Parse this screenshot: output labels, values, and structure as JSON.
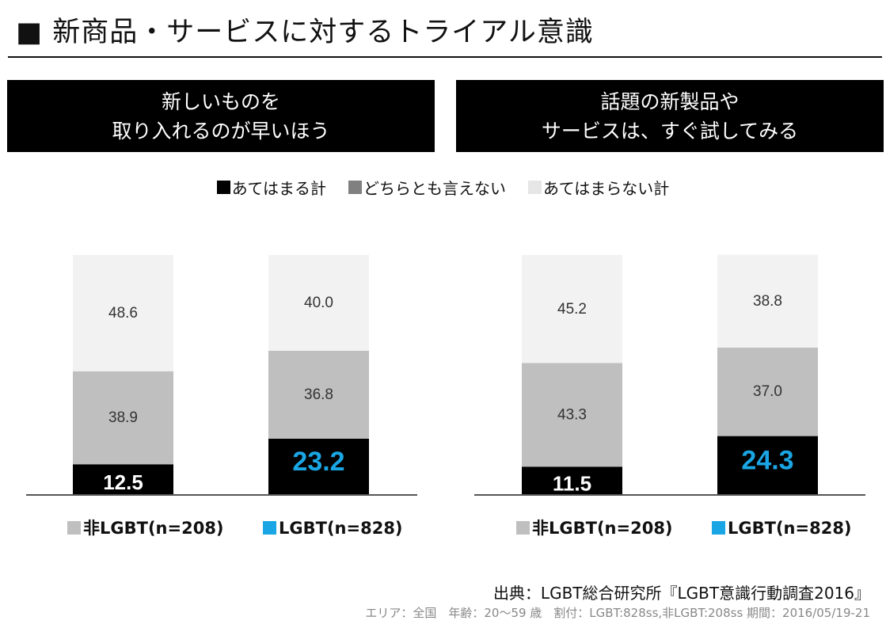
{
  "title": "■ 新商品・サービスに対するトライアル意識",
  "legend": [
    {
      "label": "あてはまる計",
      "color": "#000000"
    },
    {
      "label": "どちらとも言えない",
      "color": "#808080"
    },
    {
      "label": "あてはまらない計",
      "color": "#e6e6e6"
    }
  ],
  "chart_data": [
    {
      "type": "bar",
      "stacked": true,
      "title": "新しいものを\n取り入れるのが早いほう",
      "categories": [
        "非LGBT(n=208)",
        "LGBT(n=828)"
      ],
      "category_colors": [
        "#bfbfbf",
        "#1aa6e4"
      ],
      "series": [
        {
          "name": "あてはまる計",
          "values": [
            12.5,
            23.2
          ],
          "color": "#000000"
        },
        {
          "name": "どちらとも言えない",
          "values": [
            38.9,
            36.8
          ],
          "color": "#bfbfbf"
        },
        {
          "name": "あてはまらない計",
          "values": [
            48.6,
            40.0
          ],
          "color": "#f2f2f2"
        }
      ],
      "ylim": [
        0,
        100
      ]
    },
    {
      "type": "bar",
      "stacked": true,
      "title": "話題の新製品や\nサービスは、すぐ試してみる",
      "categories": [
        "非LGBT(n=208)",
        "LGBT(n=828)"
      ],
      "category_colors": [
        "#bfbfbf",
        "#1aa6e4"
      ],
      "series": [
        {
          "name": "あてはまる計",
          "values": [
            11.5,
            24.3
          ],
          "color": "#000000"
        },
        {
          "name": "どちらとも言えない",
          "values": [
            43.3,
            37.0
          ],
          "color": "#bfbfbf"
        },
        {
          "name": "あてはまらない計",
          "values": [
            45.2,
            38.8
          ],
          "color": "#f2f2f2"
        }
      ],
      "ylim": [
        0,
        100
      ]
    }
  ],
  "highlight_color": "#1aa6e4",
  "source": "出典：LGBT総合研究所『LGBT意識行動調査2016』",
  "note": "エリア：全国　年齢：20〜59 歳　割付：LGBT:828ss,非LGBT:208ss 期間：2016/05/19-21"
}
